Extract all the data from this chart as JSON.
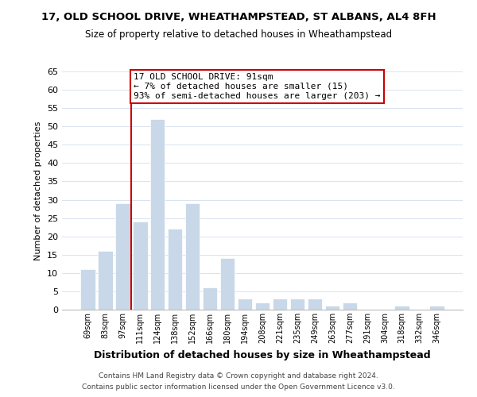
{
  "title": "17, OLD SCHOOL DRIVE, WHEATHAMPSTEAD, ST ALBANS, AL4 8FH",
  "subtitle": "Size of property relative to detached houses in Wheathampstead",
  "xlabel": "Distribution of detached houses by size in Wheathampstead",
  "ylabel": "Number of detached properties",
  "bar_color": "#c8d8e8",
  "grid_color": "#d8e4f0",
  "bin_labels": [
    "69sqm",
    "83sqm",
    "97sqm",
    "111sqm",
    "124sqm",
    "138sqm",
    "152sqm",
    "166sqm",
    "180sqm",
    "194sqm",
    "208sqm",
    "221sqm",
    "235sqm",
    "249sqm",
    "263sqm",
    "277sqm",
    "291sqm",
    "304sqm",
    "318sqm",
    "332sqm",
    "346sqm"
  ],
  "bar_heights": [
    11,
    16,
    29,
    24,
    52,
    22,
    29,
    6,
    14,
    3,
    2,
    3,
    3,
    3,
    1,
    2,
    0,
    0,
    1,
    0,
    1
  ],
  "ylim": [
    0,
    65
  ],
  "yticks": [
    0,
    5,
    10,
    15,
    20,
    25,
    30,
    35,
    40,
    45,
    50,
    55,
    60,
    65
  ],
  "property_line_x": 2.5,
  "annotation_line1": "17 OLD SCHOOL DRIVE: 91sqm",
  "annotation_line2": "← 7% of detached houses are smaller (15)",
  "annotation_line3": "93% of semi-detached houses are larger (203) →",
  "annotation_box_color": "#ffffff",
  "annotation_box_edge_color": "#cc0000",
  "property_line_color": "#cc0000",
  "footer_line1": "Contains HM Land Registry data © Crown copyright and database right 2024.",
  "footer_line2": "Contains public sector information licensed under the Open Government Licence v3.0.",
  "title_fontsize": 9.5,
  "subtitle_fontsize": 8.5
}
